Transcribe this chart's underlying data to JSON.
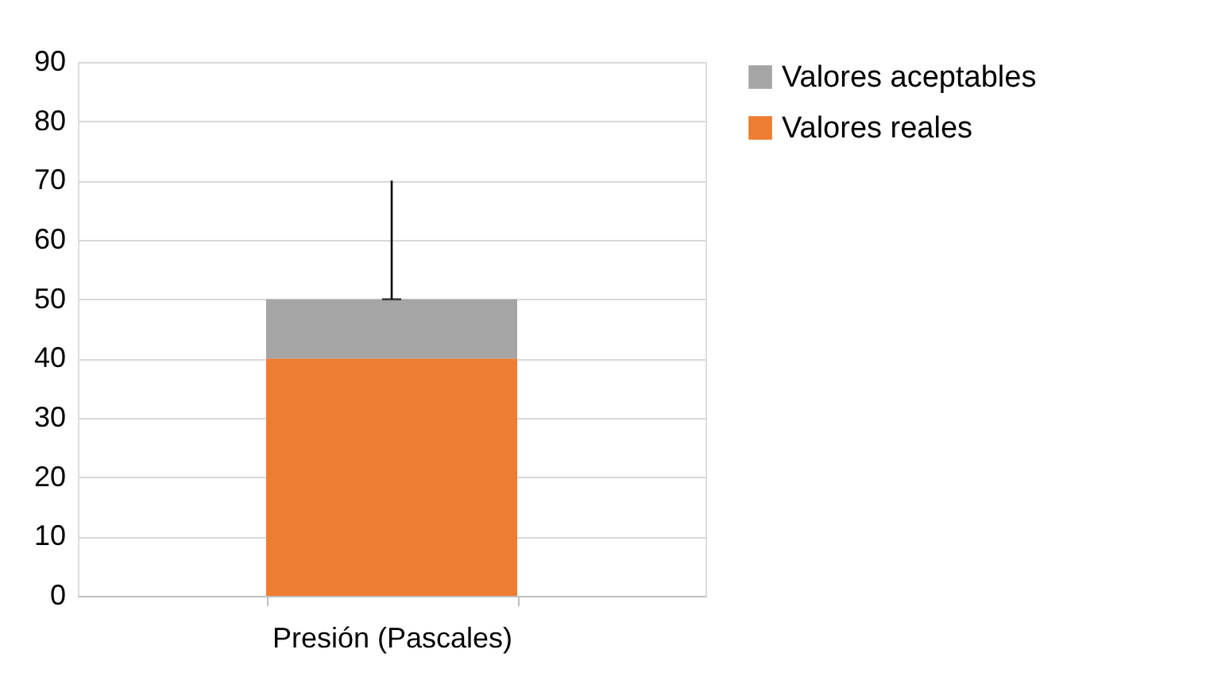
{
  "chart_data": {
    "type": "bar",
    "stacked": true,
    "categories": [
      "Presión (Pascales)"
    ],
    "series": [
      {
        "name": "Valores reales",
        "color": "#ed7d31",
        "values": [
          40
        ]
      },
      {
        "name": "Valores aceptables",
        "color": "#a5a5a5",
        "values": [
          10
        ],
        "errors": [
          [
            50,
            70
          ]
        ]
      }
    ],
    "ylim": [
      0,
      90
    ],
    "yticks": [
      0,
      10,
      20,
      30,
      40,
      50,
      60,
      70,
      80,
      90
    ],
    "grid": "y",
    "legend": "right"
  }
}
